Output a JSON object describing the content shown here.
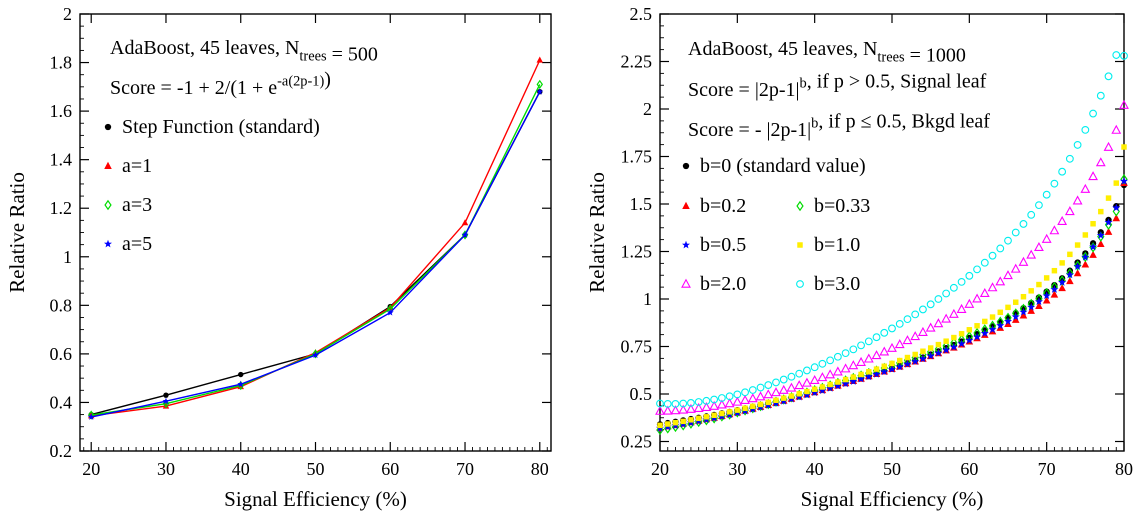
{
  "chart_data": [
    {
      "type": "line",
      "xlabel": "Signal Efficiency (%)",
      "ylabel": "Relative Ratio",
      "xlim": [
        18.5,
        81.5
      ],
      "ylim": [
        0.2,
        2.0
      ],
      "xticks": [
        20,
        30,
        40,
        50,
        60,
        70,
        80
      ],
      "yticks": [
        0.2,
        0.4,
        0.6,
        0.8,
        1.0,
        1.2,
        1.4,
        1.6,
        1.8,
        2.0
      ],
      "yticklabels": [
        "0.2",
        "0.4",
        "0.6",
        "0.8",
        "1",
        "1.2",
        "1.4",
        "1.6",
        "1.8",
        "2"
      ],
      "grid": false,
      "legend_position": "top-left",
      "annotations": [
        {
          "parts": [
            {
              "t": "AdaBoost, 45 leaves, N",
              "s": "n"
            },
            {
              "t": "trees",
              "s": "sub"
            },
            {
              "t": " = 500",
              "s": "n"
            }
          ]
        },
        {
          "parts": [
            {
              "t": "Score = -1 + 2/(1 + e",
              "s": "n"
            },
            {
              "t": "-a(2p-1)",
              "s": "sup"
            },
            {
              "t": ")",
              "s": "n"
            }
          ]
        }
      ],
      "x": [
        20,
        30,
        40,
        50,
        60,
        70,
        80
      ],
      "series": [
        {
          "name": "Step Function (standard)",
          "color": "#000000",
          "marker": "circle",
          "values": [
            0.35,
            0.43,
            0.515,
            0.6,
            0.795,
            1.09,
            1.68
          ]
        },
        {
          "name": "a=1",
          "color": "#ff0000",
          "marker": "triangle",
          "values": [
            0.345,
            0.385,
            0.465,
            0.605,
            0.79,
            1.14,
            1.81
          ]
        },
        {
          "name": "a=3",
          "color": "#00dd00",
          "marker": "diamond",
          "values": [
            0.348,
            0.395,
            0.47,
            0.6,
            0.785,
            1.09,
            1.71
          ]
        },
        {
          "name": "a=5",
          "color": "#0000ff",
          "marker": "star",
          "values": [
            0.34,
            0.405,
            0.475,
            0.595,
            0.77,
            1.09,
            1.68
          ]
        }
      ]
    },
    {
      "type": "scatter",
      "xlabel": "Signal Efficiency (%)",
      "ylabel": "Relative Ratio",
      "xlim": [
        20,
        80
      ],
      "ylim": [
        0.2,
        2.5
      ],
      "xticks": [
        20,
        30,
        40,
        50,
        60,
        70,
        80
      ],
      "yticks": [
        0.25,
        0.5,
        0.75,
        1.0,
        1.25,
        1.5,
        1.75,
        2.0,
        2.25,
        2.5
      ],
      "yticklabels": [
        "0.25",
        "0.5",
        "0.75",
        "1",
        "1.25",
        "1.5",
        "1.75",
        "2",
        "2.25",
        "2.5"
      ],
      "grid": false,
      "legend_position": "left",
      "annotations": [
        {
          "parts": [
            {
              "t": "AdaBoost, 45 leaves, N",
              "s": "n"
            },
            {
              "t": "trees",
              "s": "sub"
            },
            {
              "t": " = 1000",
              "s": "n"
            }
          ]
        },
        {
          "parts": [
            {
              "t": "Score =  |2p-1|",
              "s": "n"
            },
            {
              "t": "b",
              "s": "sup"
            },
            {
              "t": ", if p > 0.5, Signal leaf",
              "s": "n"
            }
          ]
        },
        {
          "parts": [
            {
              "t": "Score = - |2p-1|",
              "s": "n"
            },
            {
              "t": "b",
              "s": "sup"
            },
            {
              "t": ", if p ≤ 0.5, Bkgd leaf",
              "s": "n"
            }
          ]
        }
      ],
      "x": [
        20,
        21,
        22,
        23,
        24,
        25,
        26,
        27,
        28,
        29,
        30,
        31,
        32,
        33,
        34,
        35,
        36,
        37,
        38,
        39,
        40,
        41,
        42,
        43,
        44,
        45,
        46,
        47,
        48,
        49,
        50,
        51,
        52,
        53,
        54,
        55,
        56,
        57,
        58,
        59,
        60,
        61,
        62,
        63,
        64,
        65,
        66,
        67,
        68,
        69,
        70,
        71,
        72,
        73,
        74,
        75,
        76,
        77,
        78,
        79,
        80
      ],
      "series": [
        {
          "name": "b=0 (standard value)",
          "color": "#000000",
          "marker": "circle",
          "values": [
            0.34,
            0.347,
            0.354,
            0.361,
            0.368,
            0.375,
            0.382,
            0.39,
            0.398,
            0.406,
            0.415,
            0.424,
            0.433,
            0.442,
            0.452,
            0.462,
            0.472,
            0.482,
            0.492,
            0.502,
            0.513,
            0.524,
            0.535,
            0.546,
            0.558,
            0.57,
            0.582,
            0.594,
            0.607,
            0.62,
            0.634,
            0.648,
            0.662,
            0.677,
            0.692,
            0.708,
            0.724,
            0.741,
            0.758,
            0.776,
            0.795,
            0.815,
            0.835,
            0.856,
            0.878,
            0.901,
            0.926,
            0.952,
            0.979,
            1.008,
            1.039,
            1.073,
            1.109,
            1.149,
            1.192,
            1.24,
            1.293,
            1.351,
            1.416,
            1.489,
            1.6
          ]
        },
        {
          "name": "b=0.2",
          "color": "#ff0000",
          "marker": "triangle",
          "values": [
            0.322,
            0.329,
            0.336,
            0.343,
            0.351,
            0.359,
            0.367,
            0.375,
            0.384,
            0.393,
            0.402,
            0.412,
            0.422,
            0.432,
            0.442,
            0.453,
            0.464,
            0.475,
            0.486,
            0.497,
            0.509,
            0.52,
            0.532,
            0.544,
            0.556,
            0.568,
            0.58,
            0.593,
            0.605,
            0.618,
            0.631,
            0.644,
            0.657,
            0.671,
            0.685,
            0.699,
            0.714,
            0.729,
            0.744,
            0.76,
            0.776,
            0.793,
            0.811,
            0.829,
            0.848,
            0.868,
            0.89,
            0.913,
            0.937,
            0.963,
            0.992,
            1.023,
            1.057,
            1.094,
            1.135,
            1.181,
            1.232,
            1.289,
            1.353,
            1.425,
            1.61
          ]
        },
        {
          "name": "b=0.33",
          "color": "#00dd00",
          "marker": "diamond",
          "values": [
            0.311,
            0.319,
            0.327,
            0.335,
            0.344,
            0.353,
            0.362,
            0.372,
            0.382,
            0.392,
            0.403,
            0.414,
            0.425,
            0.436,
            0.447,
            0.459,
            0.471,
            0.483,
            0.495,
            0.507,
            0.52,
            0.532,
            0.545,
            0.558,
            0.571,
            0.584,
            0.597,
            0.61,
            0.623,
            0.637,
            0.65,
            0.664,
            0.678,
            0.692,
            0.707,
            0.722,
            0.737,
            0.753,
            0.769,
            0.786,
            0.803,
            0.821,
            0.84,
            0.859,
            0.88,
            0.901,
            0.924,
            0.948,
            0.974,
            1.001,
            1.031,
            1.063,
            1.097,
            1.135,
            1.176,
            1.222,
            1.272,
            1.328,
            1.391,
            1.461,
            1.63
          ]
        },
        {
          "name": "b=0.5",
          "color": "#0000ff",
          "marker": "star",
          "values": [
            0.32,
            0.327,
            0.334,
            0.341,
            0.349,
            0.357,
            0.365,
            0.373,
            0.382,
            0.391,
            0.4,
            0.41,
            0.42,
            0.43,
            0.44,
            0.451,
            0.462,
            0.473,
            0.484,
            0.495,
            0.507,
            0.518,
            0.53,
            0.542,
            0.554,
            0.566,
            0.579,
            0.591,
            0.604,
            0.617,
            0.63,
            0.643,
            0.657,
            0.671,
            0.685,
            0.7,
            0.715,
            0.731,
            0.747,
            0.764,
            0.782,
            0.8,
            0.819,
            0.839,
            0.86,
            0.882,
            0.906,
            0.931,
            0.957,
            0.986,
            1.017,
            1.05,
            1.087,
            1.127,
            1.171,
            1.22,
            1.274,
            1.335,
            1.403,
            1.48,
            1.62
          ]
        },
        {
          "name": "b=1.0",
          "color": "#ffee00",
          "marker": "square",
          "values": [
            0.335,
            0.342,
            0.349,
            0.356,
            0.364,
            0.372,
            0.38,
            0.388,
            0.397,
            0.406,
            0.415,
            0.425,
            0.435,
            0.445,
            0.456,
            0.467,
            0.478,
            0.489,
            0.501,
            0.513,
            0.525,
            0.537,
            0.55,
            0.563,
            0.576,
            0.589,
            0.603,
            0.617,
            0.631,
            0.646,
            0.661,
            0.676,
            0.692,
            0.708,
            0.725,
            0.742,
            0.76,
            0.778,
            0.797,
            0.817,
            0.838,
            0.859,
            0.882,
            0.905,
            0.93,
            0.956,
            0.983,
            1.012,
            1.043,
            1.076,
            1.111,
            1.149,
            1.19,
            1.235,
            1.284,
            1.337,
            1.396,
            1.46,
            1.531,
            1.61,
            1.8
          ]
        },
        {
          "name": "b=2.0",
          "color": "#ff00ff",
          "marker": "open-triangle",
          "values": [
            0.41,
            0.411,
            0.413,
            0.416,
            0.42,
            0.425,
            0.43,
            0.436,
            0.443,
            0.45,
            0.458,
            0.467,
            0.476,
            0.486,
            0.497,
            0.508,
            0.52,
            0.532,
            0.545,
            0.558,
            0.572,
            0.587,
            0.602,
            0.617,
            0.633,
            0.65,
            0.667,
            0.685,
            0.703,
            0.722,
            0.741,
            0.761,
            0.782,
            0.803,
            0.825,
            0.848,
            0.871,
            0.895,
            0.92,
            0.946,
            0.973,
            1.001,
            1.03,
            1.06,
            1.091,
            1.124,
            1.158,
            1.194,
            1.232,
            1.272,
            1.315,
            1.36,
            1.409,
            1.461,
            1.517,
            1.578,
            1.645,
            1.718,
            1.799,
            1.889,
            2.02
          ]
        },
        {
          "name": "b=3.0",
          "color": "#00eeee",
          "marker": "open-circle",
          "values": [
            0.45,
            0.448,
            0.448,
            0.45,
            0.453,
            0.458,
            0.464,
            0.471,
            0.479,
            0.488,
            0.498,
            0.509,
            0.521,
            0.534,
            0.547,
            0.561,
            0.576,
            0.591,
            0.607,
            0.624,
            0.641,
            0.659,
            0.677,
            0.696,
            0.715,
            0.735,
            0.756,
            0.777,
            0.799,
            0.822,
            0.845,
            0.869,
            0.894,
            0.919,
            0.945,
            0.972,
            1.0,
            1.029,
            1.059,
            1.09,
            1.122,
            1.156,
            1.191,
            1.228,
            1.266,
            1.307,
            1.35,
            1.395,
            1.443,
            1.494,
            1.549,
            1.607,
            1.67,
            1.738,
            1.811,
            1.89,
            1.976,
            2.07,
            2.172,
            2.284,
            2.28
          ]
        }
      ]
    }
  ]
}
